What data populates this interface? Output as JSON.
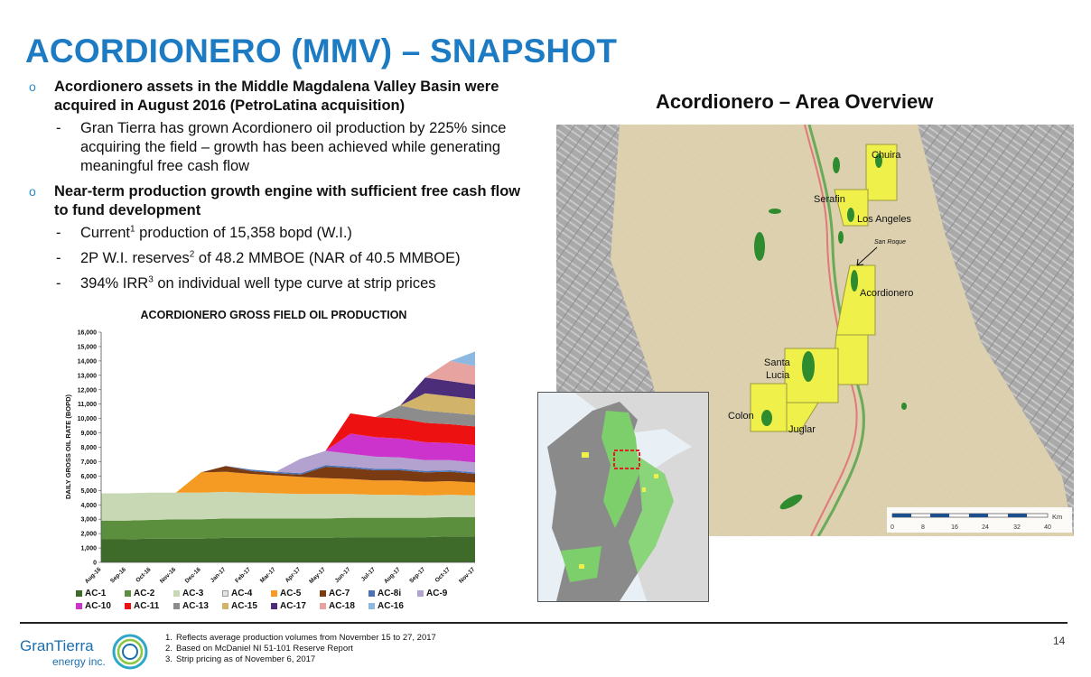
{
  "title": "ACORDIONERO (MMV) – SNAPSHOT",
  "bullets": [
    {
      "text": "Acordionero assets in the Middle Magdalena Valley Basin were acquired in August 2016 (PetroLatina acquisition)",
      "subs": [
        {
          "text": "Gran Tierra has grown Acordionero oil production by 225% since acquiring the field – growth has been achieved while generating meaningful free cash flow"
        }
      ]
    },
    {
      "text": "Near-term production growth engine with sufficient free cash flow to fund development",
      "subs": [
        {
          "pre": "Current",
          "sup": "1",
          "post": " production of 15,358 bopd (W.I.)"
        },
        {
          "pre": "2P W.I. reserves",
          "sup": "2",
          "post": " of 48.2 MMBOE (NAR of 40.5 MMBOE)"
        },
        {
          "pre": "394% IRR",
          "sup": "3",
          "post": " on individual well type curve at strip prices"
        }
      ]
    }
  ],
  "chart_data": {
    "type": "area",
    "title": "ACORDIONERO GROSS FIELD OIL PRODUCTION",
    "ylabel": "DAILY GROSS OIL RATE (BOPD)",
    "ylim": [
      0,
      16000
    ],
    "yticks": [
      "0",
      "1,000",
      "2,000",
      "3,000",
      "4,000",
      "5,000",
      "6,000",
      "7,000",
      "8,000",
      "9,000",
      "10,000",
      "11,000",
      "12,000",
      "13,000",
      "14,000",
      "15,000",
      "16,000"
    ],
    "categories": [
      "Aug-16",
      "Sep-16",
      "Oct-16",
      "Nov-16",
      "Dec-16",
      "Jan-17",
      "Feb-17",
      "Mar-17",
      "Apr-17",
      "May-17",
      "Jun-17",
      "Jul-17",
      "Aug-17",
      "Sep-17",
      "Oct-17",
      "Nov-17"
    ],
    "series": [
      {
        "name": "AC-1",
        "color": "#3f6b2a",
        "values": [
          1600,
          1600,
          1650,
          1650,
          1650,
          1700,
          1700,
          1700,
          1700,
          1700,
          1750,
          1750,
          1750,
          1750,
          1800,
          1800
        ]
      },
      {
        "name": "AC-2",
        "color": "#5b8f3e",
        "values": [
          1300,
          1300,
          1300,
          1350,
          1350,
          1350,
          1350,
          1350,
          1350,
          1350,
          1350,
          1350,
          1350,
          1350,
          1350,
          1350
        ]
      },
      {
        "name": "AC-3",
        "color": "#c9d8b4",
        "values": [
          1900,
          1900,
          1900,
          1850,
          1850,
          1850,
          1800,
          1750,
          1700,
          1700,
          1650,
          1600,
          1600,
          1550,
          1550,
          1500
        ]
      },
      {
        "name": "AC-4",
        "color": "#e3e3e3",
        "values": [
          0,
          0,
          0,
          0,
          0,
          0,
          0,
          0,
          0,
          0,
          0,
          0,
          0,
          0,
          0,
          0
        ]
      },
      {
        "name": "AC-5",
        "color": "#f59a23",
        "values": [
          0,
          0,
          0,
          0,
          1400,
          1400,
          1300,
          1250,
          1200,
          1100,
          1050,
          1000,
          1000,
          950,
          950,
          900
        ]
      },
      {
        "name": "AC-7",
        "color": "#7a3a12",
        "values": [
          0,
          0,
          0,
          0,
          0,
          400,
          200,
          150,
          150,
          800,
          750,
          700,
          700,
          650,
          650,
          600
        ]
      },
      {
        "name": "AC-8i",
        "color": "#4a73b5",
        "values": [
          0,
          0,
          0,
          0,
          0,
          0,
          100,
          100,
          100,
          100,
          100,
          100,
          100,
          100,
          100,
          100
        ]
      },
      {
        "name": "AC-9",
        "color": "#b3a1cf",
        "values": [
          0,
          0,
          0,
          0,
          0,
          0,
          0,
          0,
          1000,
          1000,
          900,
          850,
          800,
          750,
          700,
          700
        ]
      },
      {
        "name": "AC-10",
        "color": "#cc33cc",
        "values": [
          0,
          0,
          0,
          0,
          0,
          0,
          0,
          0,
          0,
          0,
          1400,
          1350,
          1300,
          1250,
          1200,
          1200
        ]
      },
      {
        "name": "AC-11",
        "color": "#ee1111",
        "values": [
          0,
          0,
          0,
          0,
          0,
          0,
          0,
          0,
          0,
          0,
          1400,
          1400,
          1400,
          1350,
          1300,
          1300
        ]
      },
      {
        "name": "AC-13",
        "color": "#8c8c8c",
        "values": [
          0,
          0,
          0,
          0,
          0,
          0,
          0,
          0,
          0,
          0,
          0,
          0,
          900,
          850,
          800,
          800
        ]
      },
      {
        "name": "AC-15",
        "color": "#d2b36a",
        "values": [
          0,
          0,
          0,
          0,
          0,
          0,
          0,
          0,
          0,
          0,
          0,
          0,
          0,
          1200,
          1150,
          1100
        ]
      },
      {
        "name": "AC-17",
        "color": "#4b2d7a",
        "values": [
          0,
          0,
          0,
          0,
          0,
          0,
          0,
          0,
          0,
          0,
          0,
          0,
          0,
          1100,
          1050,
          1000
        ]
      },
      {
        "name": "AC-18",
        "color": "#e6a3a0",
        "values": [
          0,
          0,
          0,
          0,
          0,
          0,
          0,
          0,
          0,
          0,
          0,
          0,
          0,
          0,
          1400,
          1300
        ]
      },
      {
        "name": "AC-16",
        "color": "#8db8e0",
        "values": [
          0,
          0,
          0,
          0,
          0,
          0,
          0,
          0,
          0,
          0,
          0,
          0,
          0,
          0,
          0,
          1000
        ]
      }
    ],
    "legend_rows": [
      [
        "AC-1",
        "AC-2",
        "AC-3",
        "AC-4",
        "AC-5",
        "AC-7",
        "AC-8i",
        "AC-9"
      ],
      [
        "AC-10",
        "AC-11",
        "AC-13",
        "AC-15",
        "AC-17",
        "AC-18",
        "AC-16"
      ]
    ]
  },
  "map": {
    "title": "Acordionero – Area Overview",
    "labels": {
      "chuira": "Chuira",
      "serafin": "Serafin",
      "los_angeles": "Los Angeles",
      "san_roque": "San Roque",
      "acordionero": "Acordionero",
      "santa_lucia_1": "Santa",
      "santa_lucia_2": "Lucia",
      "colon": "Colon",
      "juglar": "Juglar"
    },
    "scale": {
      "unit": "Km",
      "ticks": [
        "0",
        "8",
        "16",
        "24",
        "32",
        "40"
      ]
    }
  },
  "footer": {
    "logo_text": "GranTierra",
    "logo_sub": "energy inc.",
    "footnotes": [
      {
        "n": "1.",
        "text": "Reflects average production volumes from November 15 to 27, 2017"
      },
      {
        "n": "2.",
        "text": "Based on McDaniel NI 51-101 Reserve Report"
      },
      {
        "n": "3.",
        "text": "Strip pricing as of November 6, 2017"
      }
    ],
    "page": "14"
  }
}
